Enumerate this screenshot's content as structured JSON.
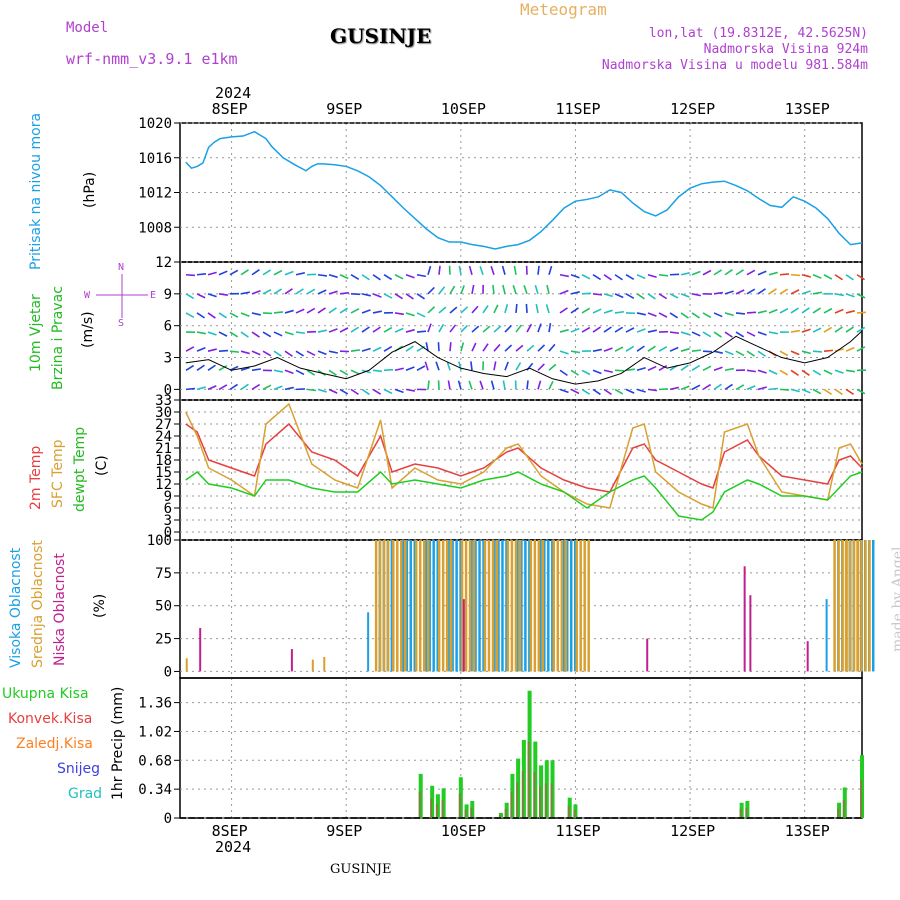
{
  "header": {
    "model_label": "Model",
    "model_name": "wrf-nmm_v3.9.1  e1km",
    "station": "GUSINJE",
    "meteogram_label": "Meteogram",
    "lonlat": "lon,lat (19.8312E, 42.5625N)",
    "altitude": "Nadmorska Visina 924m",
    "model_altitude": "Nadmorska Visina u modelu 981.584m",
    "year": "2024",
    "footer_station": "GUSINJE",
    "watermark": "made by Angel"
  },
  "colors": {
    "pressure": "#1aa0e6",
    "wind_title": "#22bb22",
    "temp_2m": "#e64040",
    "temp_sfc": "#d9a030",
    "dewpoint": "#22cc22",
    "cloud_high": "#1aa0e6",
    "cloud_mid": "#d9a030",
    "cloud_low": "#c0208f",
    "precip_total": "#22cc22",
    "precip_conv": "#e64040",
    "precip_strat": "#ff7f20",
    "snow": "#4040e0",
    "hail": "#20c0c0",
    "axis_purple": "#b040d0"
  },
  "chart_data": [
    {
      "type": "line",
      "panel": "pressure",
      "ylabel": [
        "Pritisak na nivou mora",
        "(hPa)"
      ],
      "yticks": [
        1008,
        1012,
        1016,
        1020
      ],
      "ylim": [
        1004,
        1020
      ],
      "x": [
        "7.6",
        "7.65",
        "7.7",
        "7.75",
        "7.8",
        "7.85",
        "7.9",
        "8.0",
        "8.1",
        "8.2",
        "8.3",
        "8.35",
        "8.45",
        "8.55",
        "8.65",
        "8.7",
        "8.75",
        "8.8",
        "8.9",
        "9.0",
        "9.1",
        "9.2",
        "9.3",
        "9.4",
        "9.5",
        "9.6",
        "9.7",
        "9.8",
        "9.9",
        "10.0",
        "10.1",
        "10.2",
        "10.3",
        "10.4",
        "10.5",
        "10.6",
        "10.7",
        "10.8",
        "10.9",
        "11.0",
        "11.1",
        "11.2",
        "11.3",
        "11.4",
        "11.5",
        "11.6",
        "11.7",
        "11.8",
        "11.9",
        "12.0",
        "12.1",
        "12.2",
        "12.3",
        "12.4",
        "12.5",
        "12.6",
        "12.7",
        "12.8",
        "12.9",
        "13.0",
        "13.1",
        "13.2",
        "13.3",
        "13.4",
        "13.5"
      ],
      "values": [
        1015.5,
        1014.8,
        1015.0,
        1015.4,
        1017.2,
        1017.8,
        1018.2,
        1018.4,
        1018.5,
        1019.0,
        1018.2,
        1017.3,
        1016.0,
        1015.2,
        1014.5,
        1015.0,
        1015.3,
        1015.3,
        1015.2,
        1015.0,
        1014.5,
        1013.8,
        1012.8,
        1011.5,
        1010.2,
        1009.0,
        1007.8,
        1006.8,
        1006.3,
        1006.3,
        1006.0,
        1005.8,
        1005.5,
        1005.8,
        1006.0,
        1006.5,
        1007.5,
        1008.8,
        1010.2,
        1011.0,
        1011.2,
        1011.5,
        1012.3,
        1012.0,
        1010.8,
        1009.8,
        1009.3,
        1010.0,
        1011.5,
        1012.5,
        1013.0,
        1013.2,
        1013.3,
        1012.8,
        1012.2,
        1011.3,
        1010.5,
        1010.3,
        1011.5,
        1011.0,
        1010.2,
        1009.0,
        1007.3,
        1006.0,
        1006.2
      ]
    },
    {
      "type": "vector",
      "panel": "wind",
      "ylabel": [
        "10m Vjetar",
        "Brzina i Pravac",
        "(m/s)"
      ],
      "yticks": [
        0,
        3,
        6,
        9,
        12
      ],
      "ylim": [
        -1,
        12
      ],
      "compass": [
        "N",
        "S",
        "W",
        "E"
      ],
      "speed_x": [
        "7.6",
        "7.8",
        "8.0",
        "8.2",
        "8.4",
        "8.6",
        "8.8",
        "9.0",
        "9.2",
        "9.4",
        "9.6",
        "9.8",
        "10.0",
        "10.2",
        "10.4",
        "10.6",
        "10.8",
        "11.0",
        "11.2",
        "11.4",
        "11.6",
        "11.8",
        "12.0",
        "12.2",
        "12.4",
        "12.6",
        "12.8",
        "13.0",
        "13.2",
        "13.4",
        "13.5"
      ],
      "speed_values": [
        2.5,
        2.8,
        1.8,
        2.2,
        3.0,
        2.0,
        1.5,
        1.0,
        1.8,
        3.5,
        4.5,
        3.0,
        2.0,
        1.5,
        1.2,
        2.0,
        1.0,
        0.5,
        0.8,
        1.5,
        3.0,
        2.0,
        2.5,
        3.5,
        5.0,
        4.0,
        3.0,
        2.5,
        3.0,
        4.5,
        5.5
      ]
    },
    {
      "type": "line",
      "panel": "temperature",
      "ylabel": [
        "2m Temp",
        "SFC Temp",
        "dewpt Temp",
        "(C)"
      ],
      "yticks": [
        0,
        3,
        6,
        9,
        12,
        15,
        18,
        21,
        24,
        27,
        30,
        33
      ],
      "ylim": [
        -2,
        33
      ],
      "x": [
        "7.6",
        "7.7",
        "7.8",
        "8.0",
        "8.2",
        "8.3",
        "8.5",
        "8.7",
        "8.9",
        "9.1",
        "9.3",
        "9.4",
        "9.6",
        "9.8",
        "10.0",
        "10.2",
        "10.4",
        "10.5",
        "10.7",
        "10.9",
        "11.1",
        "11.3",
        "11.5",
        "11.6",
        "11.7",
        "11.9",
        "12.1",
        "12.2",
        "12.3",
        "12.5",
        "12.6",
        "12.8",
        "13.0",
        "13.2",
        "13.3",
        "13.4",
        "13.5"
      ],
      "series": [
        {
          "name": "2m Temp",
          "values": [
            27,
            25,
            18,
            16,
            14,
            22,
            27,
            20,
            18,
            14,
            24,
            15,
            17,
            16,
            14,
            16,
            20,
            21,
            16,
            13,
            11,
            10,
            21,
            22,
            18,
            15,
            12,
            11,
            20,
            23,
            19,
            14,
            13,
            12,
            18,
            19,
            16
          ]
        },
        {
          "name": "SFC Temp",
          "values": [
            30,
            24,
            16,
            13,
            9,
            27,
            32,
            17,
            13,
            11,
            28,
            11,
            16,
            13,
            12,
            15,
            21,
            22,
            14,
            10,
            7,
            6,
            26,
            27,
            15,
            10,
            7,
            6,
            25,
            27,
            19,
            10,
            9,
            8,
            21,
            22,
            17
          ]
        },
        {
          "name": "dewpt Temp",
          "values": [
            13,
            15,
            12,
            11,
            9,
            13,
            13,
            11,
            10,
            10,
            15,
            12,
            13,
            12,
            11,
            13,
            14,
            15,
            12,
            10,
            6,
            10,
            13,
            14,
            11,
            4,
            3,
            5,
            10,
            13,
            12,
            9,
            9,
            8,
            11,
            14,
            15
          ]
        }
      ]
    },
    {
      "type": "bar",
      "panel": "cloud",
      "ylabel": [
        "Visoka Oblacnost",
        "Srednja Oblacnost",
        "Niska Oblacnost",
        "(%)"
      ],
      "yticks": [
        0,
        25,
        50,
        75,
        100
      ],
      "ylim": [
        -5,
        100
      ],
      "bar_values_note": "overcast high/mid cloud 9.2-11.0 and 13.2-13.5",
      "series": [
        {
          "name": "Visoka Oblacnost",
          "x": [
            "9.2",
            "9.3",
            "9.5",
            "9.7",
            "9.9",
            "10.1",
            "10.3",
            "10.5",
            "10.7",
            "10.9",
            "13.2",
            "13.3",
            "13.4",
            "13.5"
          ],
          "values": [
            45,
            100,
            100,
            100,
            100,
            100,
            100,
            100,
            100,
            100,
            55,
            100,
            100,
            100
          ]
        },
        {
          "name": "Srednja Oblacnost",
          "x": [
            "7.6",
            "8.7",
            "8.8",
            "9.25",
            "9.4",
            "9.6",
            "9.8",
            "10.0",
            "10.2",
            "10.4",
            "10.6",
            "10.8",
            "11.0",
            "13.25",
            "13.35",
            "13.45"
          ],
          "values": [
            10,
            9,
            11,
            100,
            100,
            100,
            100,
            100,
            100,
            100,
            100,
            100,
            100,
            100,
            100,
            100
          ]
        },
        {
          "name": "Niska Oblacnost",
          "x": [
            "7.7",
            "8.5",
            "10.0",
            "11.6",
            "12.45",
            "12.5",
            "13.0"
          ],
          "values": [
            33,
            17,
            55,
            25,
            80,
            58,
            23
          ]
        }
      ]
    },
    {
      "type": "bar",
      "panel": "precip",
      "ylabel": [
        "1hr Precip (mm)"
      ],
      "yticks": [
        0,
        0.34,
        0.68,
        1.02,
        1.36
      ],
      "ylim": [
        0,
        1.65
      ],
      "legend": [
        "Ukupna Kisa",
        "Konvek.Kisa",
        "Zaledj.Kisa",
        "Snijeg",
        "Grad"
      ],
      "x": [
        "9.65",
        "9.75",
        "9.8",
        "9.85",
        "10.0",
        "10.05",
        "10.1",
        "10.35",
        "10.4",
        "10.45",
        "10.5",
        "10.55",
        "10.6",
        "10.65",
        "10.7",
        "10.75",
        "10.8",
        "10.95",
        "11.0",
        "12.45",
        "12.5",
        "13.3",
        "13.35",
        "13.5"
      ],
      "values": [
        0.52,
        0.38,
        0.28,
        0.35,
        0.48,
        0.16,
        0.2,
        0.06,
        0.18,
        0.52,
        0.7,
        0.92,
        1.5,
        0.9,
        0.62,
        0.68,
        0.68,
        0.24,
        0.16,
        0.18,
        0.2,
        0.18,
        0.36,
        0.74
      ]
    }
  ],
  "xaxis": {
    "labels": [
      "8SEP",
      "9SEP",
      "10SEP",
      "11SEP",
      "12SEP",
      "13SEP"
    ],
    "positions": [
      "8.0",
      "9.0",
      "10.0",
      "11.0",
      "12.0",
      "13.0"
    ],
    "range": [
      "7.55",
      "13.5"
    ]
  }
}
